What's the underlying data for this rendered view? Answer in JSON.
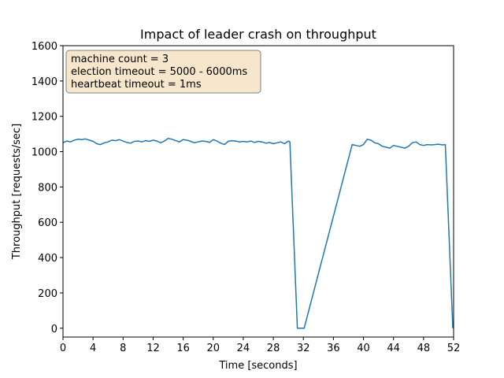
{
  "chart_data": {
    "type": "line",
    "title": "Impact of leader crash on throughput",
    "xlabel": "Time [seconds]",
    "ylabel": "Throughput [requests/sec]",
    "xlim": [
      0,
      52
    ],
    "ylim": [
      -50,
      1600
    ],
    "xticks": [
      0,
      4,
      8,
      12,
      16,
      20,
      24,
      28,
      32,
      36,
      40,
      44,
      48,
      52
    ],
    "yticks": [
      0,
      200,
      400,
      600,
      800,
      1000,
      1200,
      1400,
      1600
    ],
    "grid": false,
    "line_color": "#1f77b4",
    "annotation": {
      "lines": [
        "machine count = 3",
        "election timeout = 5000 - 6000ms",
        "heartbeat timeout = 1ms"
      ],
      "box_fill": "#f5e6cc",
      "box_edge": "#808080",
      "placement": "top-left"
    },
    "series": [
      {
        "x": [
          0,
          0.5,
          1,
          1.5,
          2,
          2.5,
          3,
          3.5,
          4,
          4.5,
          5,
          5.5,
          6,
          6.5,
          7,
          7.5,
          8,
          8.5,
          9,
          9.5,
          10,
          10.5,
          11,
          11.5,
          12,
          12.5,
          13,
          13.5,
          14,
          14.5,
          15,
          15.5,
          16,
          16.5,
          17,
          17.5,
          18,
          18.5,
          19,
          19.5,
          20,
          20.5,
          21,
          21.5,
          22,
          22.5,
          23,
          23.5,
          24,
          24.5,
          25,
          25.5,
          26,
          26.5,
          27,
          27.5,
          28,
          28.5,
          29,
          29.5,
          30,
          30.2,
          31.2,
          32.1,
          38.5,
          39,
          39.5,
          40,
          40.5,
          41,
          41.5,
          42,
          42.5,
          43,
          43.5,
          44,
          44.5,
          45,
          45.5,
          46,
          46.5,
          47,
          47.5,
          48,
          48.5,
          49,
          49.5,
          50,
          50.5,
          50.9,
          51.9
        ],
        "y": [
          1050,
          1060,
          1055,
          1065,
          1070,
          1068,
          1072,
          1065,
          1058,
          1045,
          1040,
          1050,
          1055,
          1065,
          1062,
          1068,
          1060,
          1052,
          1048,
          1058,
          1060,
          1055,
          1062,
          1058,
          1065,
          1060,
          1050,
          1060,
          1075,
          1070,
          1062,
          1055,
          1068,
          1065,
          1058,
          1050,
          1055,
          1060,
          1058,
          1052,
          1068,
          1060,
          1048,
          1040,
          1058,
          1062,
          1060,
          1055,
          1058,
          1055,
          1060,
          1052,
          1058,
          1055,
          1048,
          1052,
          1045,
          1050,
          1055,
          1045,
          1060,
          1055,
          0,
          0,
          1040,
          1035,
          1030,
          1040,
          1070,
          1065,
          1050,
          1045,
          1030,
          1025,
          1020,
          1035,
          1030,
          1025,
          1020,
          1030,
          1050,
          1055,
          1040,
          1035,
          1040,
          1038,
          1040,
          1042,
          1038,
          1040,
          0
        ]
      }
    ]
  }
}
